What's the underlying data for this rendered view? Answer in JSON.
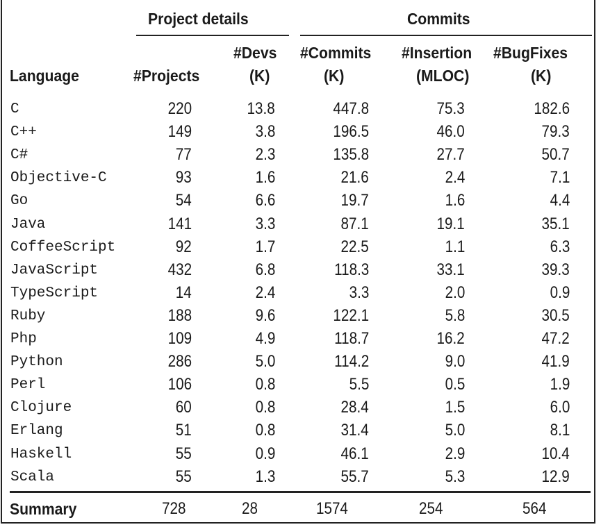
{
  "groups": {
    "project_details": "Project details",
    "commits": "Commits"
  },
  "headers": {
    "language": "Language",
    "projects": "#Projects",
    "devs": [
      "#Devs",
      "(K)"
    ],
    "commits": [
      "#Commits",
      "(K)"
    ],
    "insertion": [
      "#Insertion",
      "(MLOC)"
    ],
    "bugfixes": [
      "#BugFixes",
      "(K)"
    ]
  },
  "rows": [
    [
      "C",
      "220",
      "13.8",
      "447.8",
      "75.3",
      "182.6"
    ],
    [
      "C++",
      "149",
      "3.8",
      "196.5",
      "46.0",
      "79.3"
    ],
    [
      "C#",
      "77",
      "2.3",
      "135.8",
      "27.7",
      "50.7"
    ],
    [
      "Objective-C",
      "93",
      "1.6",
      "21.6",
      "2.4",
      "7.1"
    ],
    [
      "Go",
      "54",
      "6.6",
      "19.7",
      "1.6",
      "4.4"
    ],
    [
      "Java",
      "141",
      "3.3",
      "87.1",
      "19.1",
      "35.1"
    ],
    [
      "CoffeeScript",
      "92",
      "1.7",
      "22.5",
      "1.1",
      "6.3"
    ],
    [
      "JavaScript",
      "432",
      "6.8",
      "118.3",
      "33.1",
      "39.3"
    ],
    [
      "TypeScript",
      "14",
      "2.4",
      "3.3",
      "2.0",
      "0.9"
    ],
    [
      "Ruby",
      "188",
      "9.6",
      "122.1",
      "5.8",
      "30.5"
    ],
    [
      "Php",
      "109",
      "4.9",
      "118.7",
      "16.2",
      "47.2"
    ],
    [
      "Python",
      "286",
      "5.0",
      "114.2",
      "9.0",
      "41.9"
    ],
    [
      "Perl",
      "106",
      "0.8",
      "5.5",
      "0.5",
      "1.9"
    ],
    [
      "Clojure",
      "60",
      "0.8",
      "28.4",
      "1.5",
      "6.0"
    ],
    [
      "Erlang",
      "51",
      "0.8",
      "31.4",
      "5.0",
      "8.1"
    ],
    [
      "Haskell",
      "55",
      "0.9",
      "46.1",
      "2.9",
      "10.4"
    ],
    [
      "Scala",
      "55",
      "1.3",
      "55.7",
      "5.3",
      "12.9"
    ]
  ],
  "summary": {
    "label": "Summary",
    "values": [
      "728",
      "28",
      "1574",
      "254",
      "564"
    ]
  }
}
